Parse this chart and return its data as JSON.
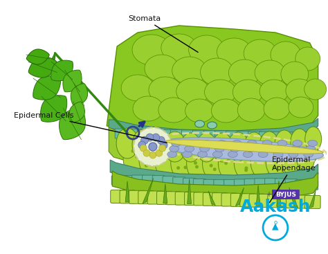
{
  "bg_color": "#ffffff",
  "labels": {
    "epidermal_appendage": "Epidermal\nAppendage",
    "epidermal_cells": "Epidermal Cells",
    "stomata": "Stomata"
  },
  "colors": {
    "white": "#ffffff",
    "bright_green": "#a8d832",
    "medium_green": "#7ab520",
    "dark_green": "#4a7c0a",
    "deep_green": "#2d5a0a",
    "cell_green": "#b8d840",
    "teal": "#5aaa8a",
    "teal_dark": "#3a8a6a",
    "teal_cell": "#6ab89a",
    "bottom_green": "#88c820",
    "bottom_light": "#a8e030",
    "spongy_green": "#90c828",
    "text_dark": "#111111",
    "aakash_blue": "#00aadd",
    "aakash_purple": "#6644aa",
    "blue_vascular": "#99bbdd",
    "yellow_vascular": "#dddd66",
    "palisade_green": "#a0cc30",
    "guard_blue": "#8899cc",
    "guard_yellow": "#cccc44",
    "leaf_bright": "#44bb22",
    "leaf_mid": "#33aa11",
    "leaf_dark": "#228800"
  }
}
